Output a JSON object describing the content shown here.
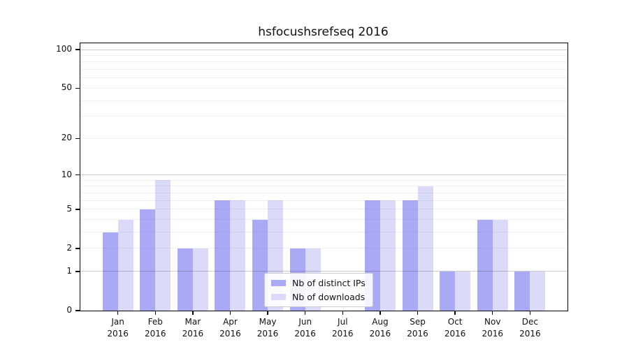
{
  "chart_data": {
    "type": "bar",
    "title": "hsfocushsrefseq 2016",
    "categories": [
      "Jan",
      "Feb",
      "Mar",
      "Apr",
      "May",
      "Jun",
      "Jul",
      "Aug",
      "Sep",
      "Oct",
      "Nov",
      "Dec"
    ],
    "category_year": "2016",
    "series": [
      {
        "name": "Nb of distinct IPs",
        "color": "#a9a9f6",
        "values": [
          3,
          5,
          2,
          6,
          4,
          2,
          0,
          6,
          6,
          1,
          4,
          1
        ]
      },
      {
        "name": "Nb of downloads",
        "color": "#dbdbf9",
        "values": [
          4,
          9,
          2,
          6,
          6,
          2,
          0,
          6,
          8,
          1,
          4,
          1
        ]
      }
    ],
    "yscale": "log1p",
    "ylim": [
      0,
      112
    ],
    "yticks": [
      0,
      1,
      2,
      5,
      10,
      20,
      50,
      100
    ],
    "major_gridlines": [
      1,
      10,
      100
    ],
    "minor_gridlines": [
      2,
      3,
      4,
      5,
      6,
      7,
      8,
      9,
      20,
      30,
      40,
      50,
      60,
      70,
      80,
      90
    ],
    "xlabel": "",
    "ylabel": "",
    "grid": "on",
    "legend_position": "lower center"
  }
}
